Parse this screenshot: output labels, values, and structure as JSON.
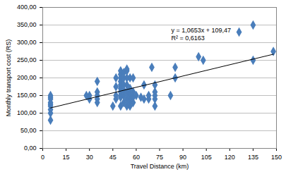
{
  "chart_data": {
    "type": "scatter",
    "x_label": "Travel Distance (km)",
    "y_label": "Monthly transport cost (RS)",
    "marker": "diamond",
    "color": "#4a7ebb",
    "grid": "y",
    "x": [
      5,
      5,
      5,
      5,
      5,
      5,
      5,
      5,
      5,
      28,
      30,
      30,
      35,
      35,
      35,
      35,
      35,
      45,
      47,
      47,
      47,
      47,
      50,
      50,
      50,
      50,
      50,
      50,
      50,
      50,
      50,
      50,
      52,
      52,
      52,
      52,
      52,
      52,
      54,
      54,
      54,
      54,
      54,
      54,
      54,
      56,
      56,
      56,
      56,
      56,
      56,
      56,
      58,
      58,
      58,
      58,
      60,
      63,
      65,
      65,
      68,
      68,
      70,
      72,
      72,
      72,
      72,
      72,
      82,
      85,
      85,
      100,
      103,
      126,
      135,
      135,
      148
    ],
    "values": [
      80,
      100,
      110,
      120,
      125,
      130,
      140,
      145,
      150,
      150,
      140,
      150,
      130,
      140,
      150,
      160,
      190,
      120,
      140,
      150,
      175,
      200,
      120,
      145,
      150,
      160,
      170,
      180,
      190,
      200,
      210,
      220,
      130,
      150,
      165,
      180,
      200,
      215,
      120,
      140,
      160,
      180,
      200,
      220,
      225,
      120,
      130,
      140,
      150,
      155,
      170,
      200,
      130,
      145,
      160,
      200,
      150,
      145,
      140,
      180,
      140,
      150,
      230,
      120,
      140,
      150,
      160,
      180,
      150,
      200,
      230,
      260,
      250,
      330,
      250,
      350,
      275
    ],
    "trendline": {
      "x": [
        5,
        148
      ],
      "values": [
        114.8,
        267.1
      ],
      "color": "#000000"
    },
    "annotations": [
      "y = 1,0653x + 109,47",
      "R² = 0,6163"
    ],
    "xlim": [
      0,
      150
    ],
    "xticks": [
      0,
      15,
      30,
      45,
      60,
      75,
      90,
      105,
      120,
      135,
      150
    ],
    "ylim": [
      0,
      400
    ],
    "yticks": [
      {
        "value": 0,
        "label": "0,00"
      },
      {
        "value": 50,
        "label": "50,00"
      },
      {
        "value": 100,
        "label": "100,00"
      },
      {
        "value": 150,
        "label": "150,00"
      },
      {
        "value": 200,
        "label": "200,00"
      },
      {
        "value": 250,
        "label": "250,00"
      },
      {
        "value": 300,
        "label": "300,00"
      },
      {
        "value": 350,
        "label": "350,00"
      },
      {
        "value": 400,
        "label": "400,00"
      }
    ]
  }
}
